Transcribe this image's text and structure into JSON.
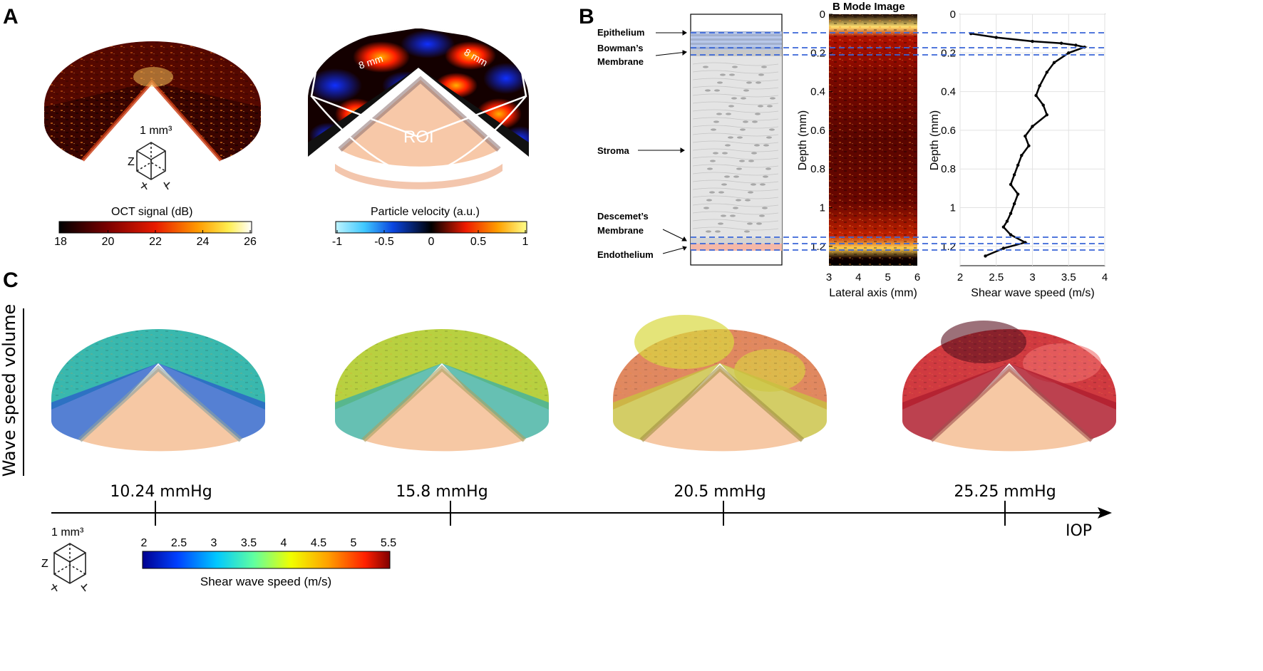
{
  "panels": {
    "A": {
      "letter": "A",
      "cube_label": "1 mm³",
      "cube_axes": {
        "z": "Z",
        "x": "X",
        "y": "Y"
      },
      "oct_colorbar": {
        "title": "OCT signal (dB)",
        "ticks": [
          "18",
          "20",
          "22",
          "24",
          "26"
        ]
      },
      "velocity_colorbar": {
        "title": "Particle velocity (a.u.)",
        "ticks": [
          "-1",
          "-0.5",
          "0",
          "0.5",
          "1"
        ]
      },
      "roi_label": "ROI",
      "dim_labels": [
        "8 mm",
        "8 mm"
      ]
    },
    "B": {
      "letter": "B",
      "schematic_labels": {
        "epithelium": "Epithelium",
        "bowman_1": "Bowman’s",
        "bowman_2": "Membrane",
        "stroma": "Stroma",
        "descemet_1": "Descemet’s",
        "descemet_2": "Membrane",
        "endothelium": "Endothelium"
      },
      "bmode_title": "B Mode Image",
      "bmode_ylabel": "Depth (mm)",
      "bmode_xlabel": "Lateral axis (mm)",
      "bmode_xticks": [
        "3",
        "4",
        "5",
        "6"
      ],
      "yticks": [
        "0",
        "0.2",
        "0.4",
        "0.6",
        "0.8",
        "1",
        "1.2"
      ],
      "profile_ylabel": "Depth (mm)",
      "profile_xlabel": "Shear wave speed (m/s)",
      "profile_xticks": [
        "2",
        "2.5",
        "3",
        "3.5",
        "4"
      ]
    },
    "C": {
      "letter": "C",
      "side_label": "Wave speed volume",
      "pressures": [
        "10.24 mmHg",
        "15.8 mmHg",
        "20.5 mmHg",
        "25.25 mmHg"
      ],
      "axis_label": "IOP",
      "cube_label": "1 mm³",
      "colorbar": {
        "title": "Shear wave speed (m/s)",
        "ticks": [
          "2",
          "2.5",
          "3",
          "3.5",
          "4",
          "4.5",
          "5",
          "5.5"
        ]
      }
    }
  },
  "chart_data": {
    "type": "line",
    "xlabel": "Shear wave speed (m/s)",
    "ylabel": "Depth (mm)",
    "xlim": [
      2,
      4
    ],
    "ylim": [
      1.3,
      0
    ],
    "grid": true,
    "series": [
      {
        "x": [
          2.15,
          2.5,
          3.0,
          3.4,
          3.6,
          3.72,
          3.5,
          3.3,
          3.2,
          3.1,
          3.05,
          3.15,
          3.2,
          3.0,
          2.9,
          2.95,
          2.85,
          2.8,
          2.75,
          2.7,
          2.8,
          2.75,
          2.7,
          2.65,
          2.6,
          2.7,
          2.9,
          2.6,
          2.35
        ],
        "y": [
          0.1,
          0.12,
          0.14,
          0.15,
          0.16,
          0.17,
          0.2,
          0.25,
          0.3,
          0.37,
          0.42,
          0.47,
          0.52,
          0.58,
          0.63,
          0.68,
          0.73,
          0.78,
          0.83,
          0.88,
          0.93,
          0.98,
          1.03,
          1.07,
          1.1,
          1.14,
          1.18,
          1.21,
          1.25
        ]
      }
    ]
  }
}
